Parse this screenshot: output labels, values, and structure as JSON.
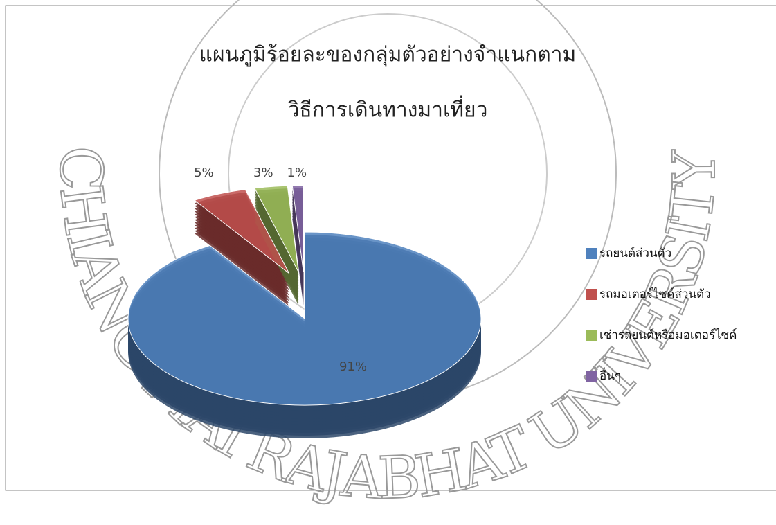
{
  "chart_data": {
    "type": "pie",
    "title": [
      "แผนภูมิร้อยละของกลุ่มตัวอย่างจำแนกตาม",
      "วิธีการเดินทางมาเที่ยว"
    ],
    "watermark": "CHIANG MAI RAJABHAT UNIVERSITY",
    "categories": [
      "รถยนต์ส่วนตัว",
      "รถมอเตอร์ไซค์ส่วนตัว",
      "เช่ารถยนต์หรือมอเตอร์ไซค์",
      "อื่นๆ"
    ],
    "values": [
      91,
      5,
      3,
      1
    ],
    "value_labels": [
      "91%",
      "5%",
      "3%",
      "1%"
    ],
    "colors": [
      "#4f81bd",
      "#c0504d",
      "#9bbb59",
      "#8064a2"
    ],
    "legend": "right"
  }
}
